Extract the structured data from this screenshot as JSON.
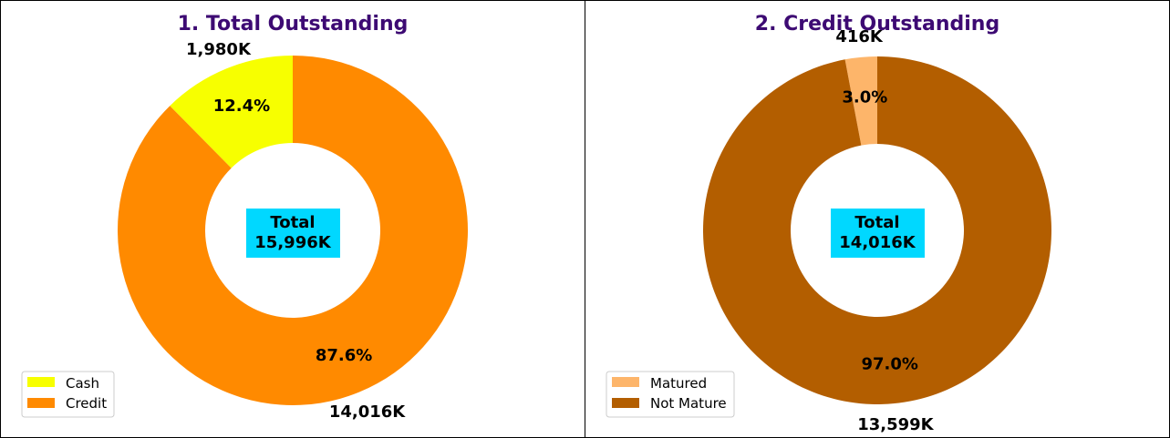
{
  "chart_data": [
    {
      "type": "pie",
      "title": "1. Total Outstanding",
      "center_label": {
        "line1": "Total",
        "line2": "15,996K"
      },
      "center_box_color": "#00d8ff",
      "title_color": "#3d0a73",
      "slices": [
        {
          "name": "Cash",
          "value": 1980,
          "value_label": "1,980K",
          "percent_label": "12.4%",
          "color": "#f7ff00"
        },
        {
          "name": "Credit",
          "value": 14016,
          "value_label": "14,016K",
          "percent_label": "87.6%",
          "color": "#ff8a00"
        }
      ],
      "legend": {
        "placement": "lower-left",
        "entries": [
          "Cash",
          "Credit"
        ]
      },
      "donut": true
    },
    {
      "type": "pie",
      "title": "2. Credit Outstanding",
      "center_label": {
        "line1": "Total",
        "line2": "14,016K"
      },
      "center_box_color": "#00d8ff",
      "title_color": "#3d0a73",
      "slices": [
        {
          "name": "Matured",
          "value": 416,
          "value_label": "416K",
          "percent_label": "3.0%",
          "color": "#fdb56a"
        },
        {
          "name": "Not Mature",
          "value": 13599,
          "value_label": "13,599K",
          "percent_label": "97.0%",
          "color": "#b35e00"
        }
      ],
      "legend": {
        "placement": "lower-left",
        "entries": [
          "Matured",
          "Not Mature"
        ]
      },
      "donut": true
    }
  ]
}
